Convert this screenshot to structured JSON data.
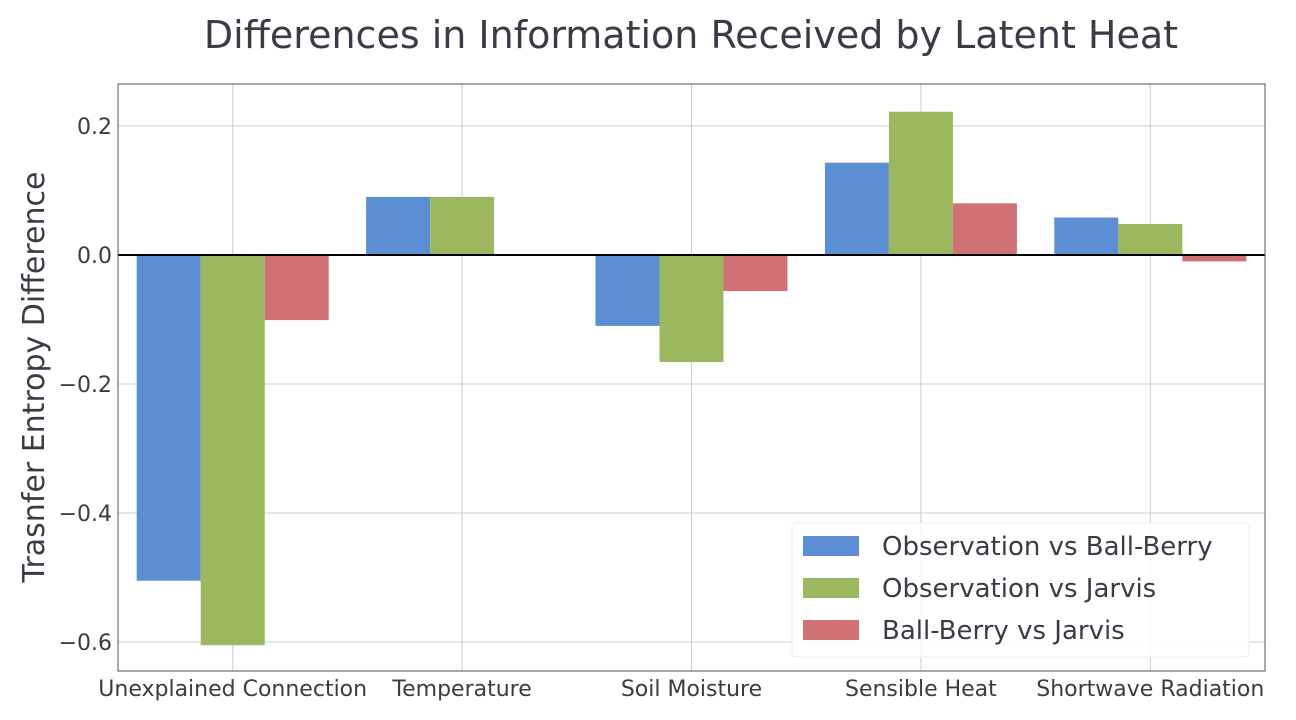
{
  "chart_data": {
    "type": "bar",
    "title": "Differences in Information Received by Latent Heat",
    "xlabel": "",
    "ylabel": "Trasnfer Entropy Difference",
    "categories": [
      "Unexplained Connection",
      "Temperature",
      "Soil Moisture",
      "Sensible Heat",
      "Shortwave Radiation"
    ],
    "series": [
      {
        "name": "Observation vs Ball-Berry",
        "color": "#5b8ed3",
        "values": [
          -0.505,
          0.09,
          -0.11,
          0.143,
          0.058
        ]
      },
      {
        "name": "Observation vs Jarvis",
        "color": "#9bb85e",
        "values": [
          -0.605,
          0.09,
          -0.166,
          0.222,
          0.048
        ]
      },
      {
        "name": "Ball-Berry vs Jarvis",
        "color": "#d07175",
        "values": [
          -0.101,
          0.0,
          -0.056,
          0.08,
          -0.01
        ]
      }
    ],
    "ylim": [
      -0.645,
      0.265
    ],
    "yticks": [
      0.2,
      0.0,
      -0.2,
      -0.4,
      -0.6
    ],
    "ytick_labels": [
      "0.2",
      "0.0",
      "−0.2",
      "−0.4",
      "−0.6"
    ],
    "grid": true,
    "zero_line": true,
    "legend_position": "lower-right"
  }
}
